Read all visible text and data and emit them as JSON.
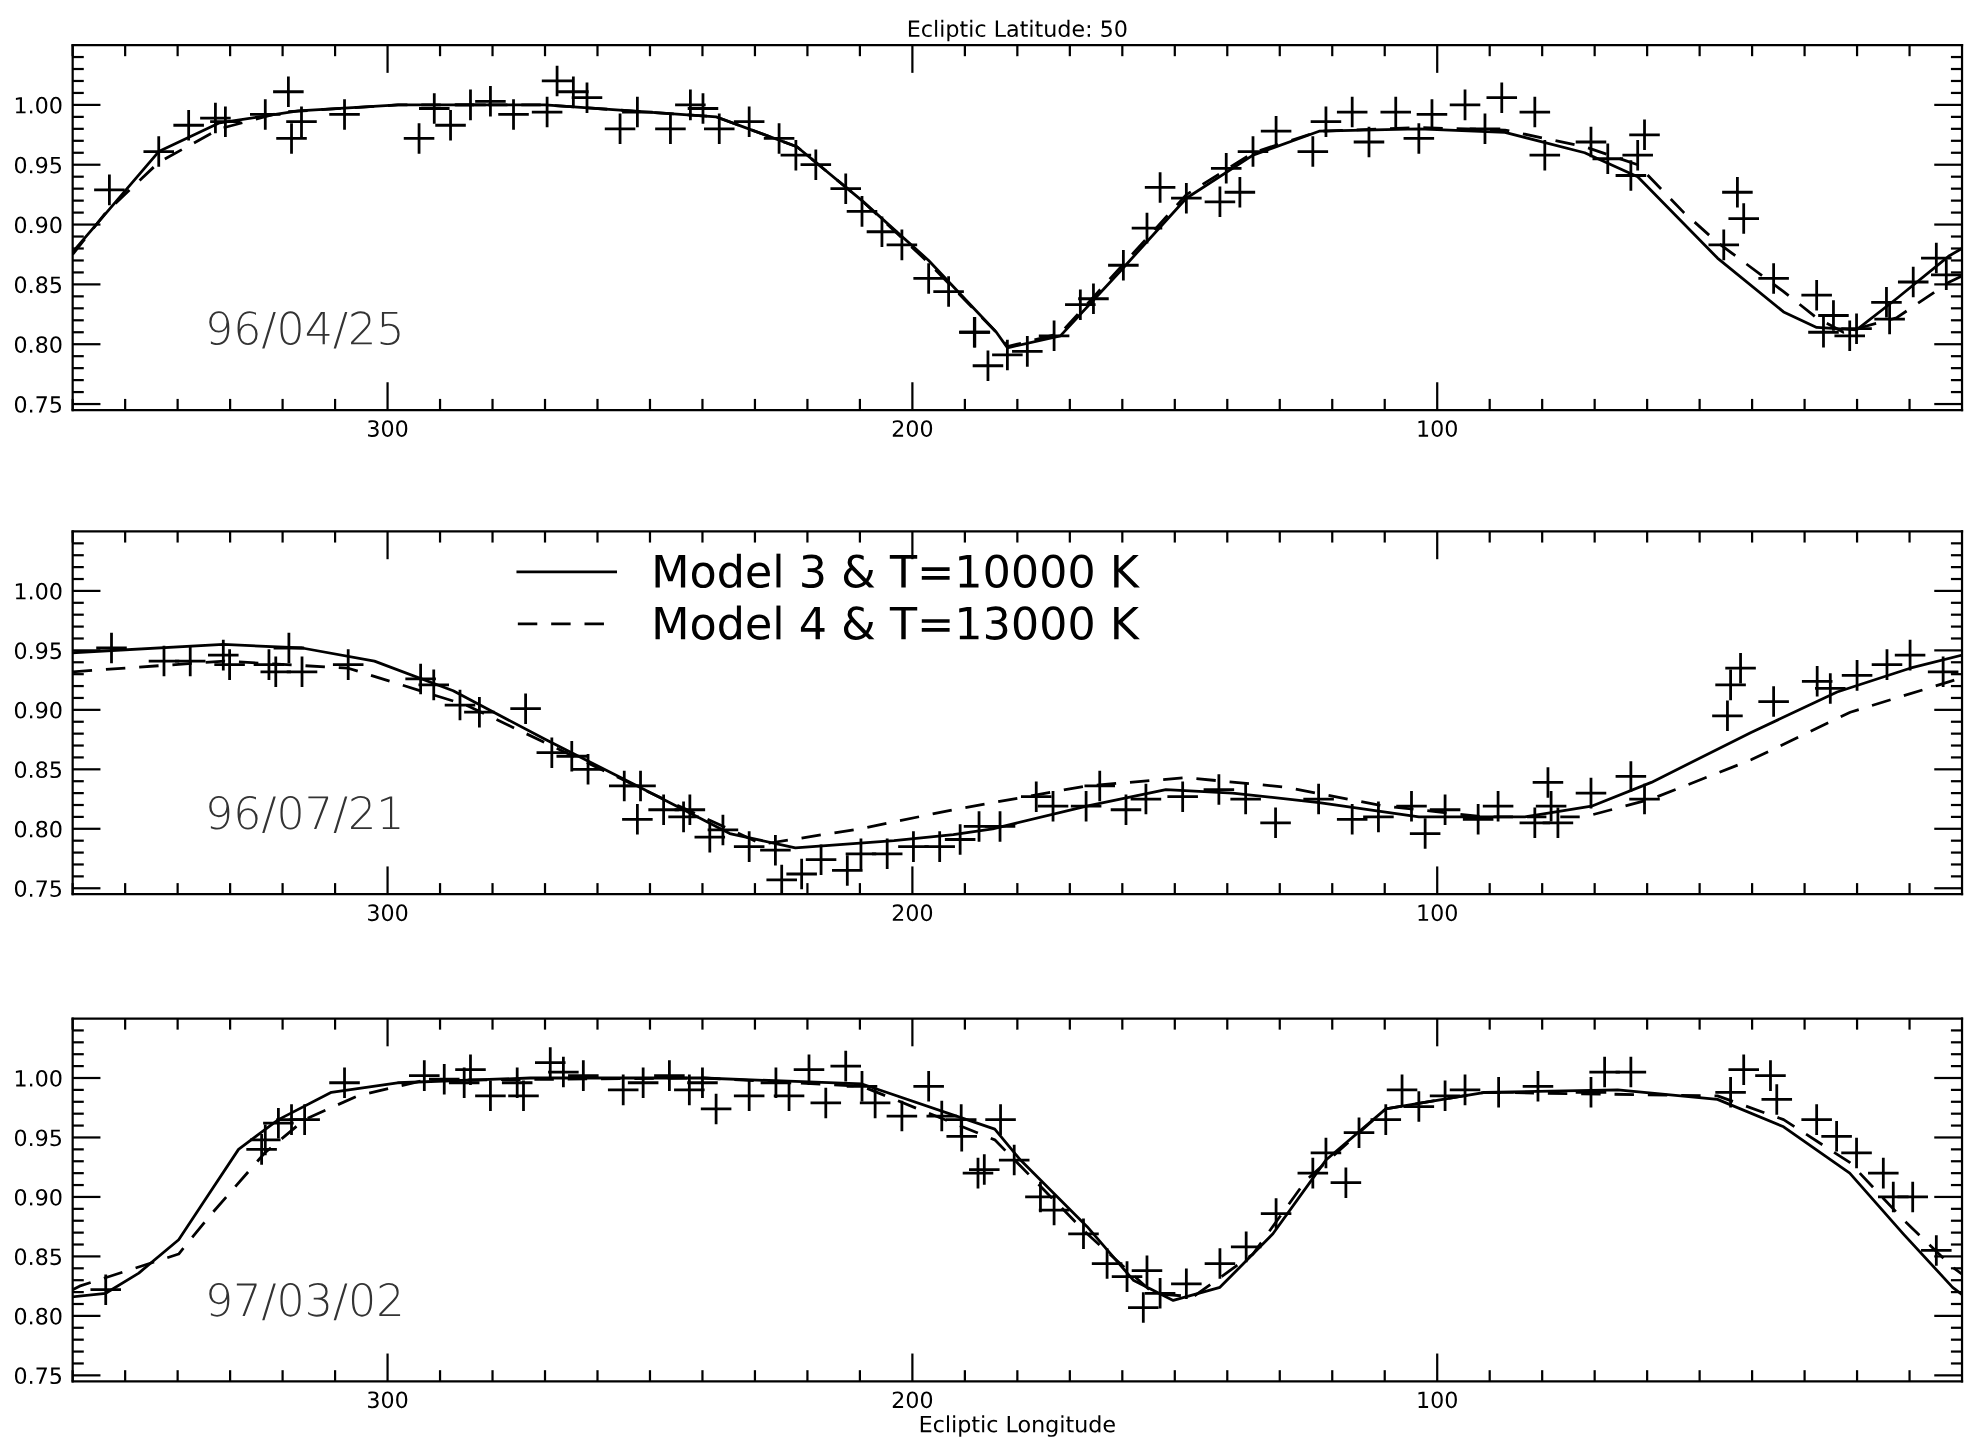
{
  "chart_data": [
    {
      "type": "line",
      "title": "Ecliptic Latitude: 50",
      "annotations": [
        "96/04/25"
      ],
      "xlim": [
        360,
        0
      ],
      "ylim": [
        0.745,
        1.05
      ],
      "xticks": [
        {
          "value": 360,
          "label": null
        },
        {
          "value": 350,
          "label": null
        },
        {
          "value": 340,
          "label": null
        },
        {
          "value": 330,
          "label": null
        },
        {
          "value": 320,
          "label": null
        },
        {
          "value": 310,
          "label": null
        },
        {
          "value": 300,
          "label": "300"
        },
        {
          "value": 290,
          "label": null
        },
        {
          "value": 280,
          "label": null
        },
        {
          "value": 270,
          "label": null
        },
        {
          "value": 260,
          "label": null
        },
        {
          "value": 250,
          "label": null
        },
        {
          "value": 240,
          "label": null
        },
        {
          "value": 230,
          "label": null
        },
        {
          "value": 220,
          "label": null
        },
        {
          "value": 210,
          "label": null
        },
        {
          "value": 200,
          "label": "200"
        },
        {
          "value": 190,
          "label": null
        },
        {
          "value": 180,
          "label": null
        },
        {
          "value": 170,
          "label": null
        },
        {
          "value": 160,
          "label": null
        },
        {
          "value": 150,
          "label": null
        },
        {
          "value": 140,
          "label": null
        },
        {
          "value": 130,
          "label": null
        },
        {
          "value": 120,
          "label": null
        },
        {
          "value": 110,
          "label": null
        },
        {
          "value": 100,
          "label": "100"
        },
        {
          "value": 90,
          "label": null
        },
        {
          "value": 80,
          "label": null
        },
        {
          "value": 70,
          "label": null
        },
        {
          "value": 60,
          "label": null
        },
        {
          "value": 50,
          "label": null
        },
        {
          "value": 40,
          "label": null
        },
        {
          "value": 30,
          "label": null
        },
        {
          "value": 20,
          "label": null
        },
        {
          "value": 10,
          "label": null
        }
      ],
      "yticks": [
        {
          "value": 0.75,
          "label": "0.75"
        },
        {
          "value": 0.76,
          "label": null
        },
        {
          "value": 0.77,
          "label": null
        },
        {
          "value": 0.78,
          "label": null
        },
        {
          "value": 0.79,
          "label": null
        },
        {
          "value": 0.8,
          "label": "0.80"
        },
        {
          "value": 0.81,
          "label": null
        },
        {
          "value": 0.82,
          "label": null
        },
        {
          "value": 0.83,
          "label": null
        },
        {
          "value": 0.84,
          "label": null
        },
        {
          "value": 0.85,
          "label": "0.85"
        },
        {
          "value": 0.86,
          "label": null
        },
        {
          "value": 0.87,
          "label": null
        },
        {
          "value": 0.88,
          "label": null
        },
        {
          "value": 0.89,
          "label": null
        },
        {
          "value": 0.9,
          "label": "0.90"
        },
        {
          "value": 0.91,
          "label": null
        },
        {
          "value": 0.92,
          "label": null
        },
        {
          "value": 0.93,
          "label": null
        },
        {
          "value": 0.94,
          "label": null
        },
        {
          "value": 0.95,
          "label": "0.95"
        },
        {
          "value": 0.96,
          "label": null
        },
        {
          "value": 0.97,
          "label": null
        },
        {
          "value": 0.98,
          "label": null
        },
        {
          "value": 0.99,
          "label": null
        },
        {
          "value": 1.0,
          "label": "1.00"
        },
        {
          "value": 1.01,
          "label": null
        },
        {
          "value": 1.02,
          "label": null
        },
        {
          "value": 1.03,
          "label": null
        },
        {
          "value": 1.04,
          "label": null
        }
      ],
      "series": [
        {
          "type": "line",
          "line_style": "solid",
          "color": "#000000",
          "x": [
            360,
            343.6,
            332,
            317,
            298,
            270,
            237.4,
            222,
            209.6,
            196.9,
            184,
            181.9,
            171.8,
            160.4,
            147.8,
            135.1,
            122.5,
            103.5,
            87.1,
            71.9,
            61.8,
            46.6,
            34,
            27.7,
            20.1,
            12.5,
            2.4,
            0
          ],
          "values": [
            0.877,
            0.961,
            0.985,
            0.995,
            1.0,
            1.0,
            0.99,
            0.965,
            0.92,
            0.87,
            0.81,
            0.797,
            0.807,
            0.861,
            0.922,
            0.958,
            0.978,
            0.98,
            0.977,
            0.96,
            0.94,
            0.872,
            0.827,
            0.814,
            0.812,
            0.838,
            0.874,
            0.88
          ]
        },
        {
          "type": "line",
          "line_style": "dashed",
          "color": "#000000",
          "x": [
            360,
            353.7,
            343.6,
            332,
            320,
            298,
            270,
            237.4,
            222,
            209.6,
            196.9,
            184,
            181.9,
            171.8,
            160.4,
            147.8,
            135.1,
            122.5,
            103.5,
            87.1,
            71.9,
            61.8,
            53,
            46.6,
            34,
            27.7,
            22.6,
            12.5,
            2.4,
            0
          ],
          "values": [
            0.875,
            0.91,
            0.952,
            0.98,
            0.994,
            1.0,
            1.0,
            0.99,
            0.965,
            0.92,
            0.868,
            0.81,
            0.798,
            0.809,
            0.864,
            0.925,
            0.96,
            0.978,
            0.981,
            0.979,
            0.965,
            0.95,
            0.91,
            0.885,
            0.844,
            0.822,
            0.81,
            0.822,
            0.852,
            0.857
          ]
        },
        {
          "type": "scatter",
          "marker": "cross",
          "color": "#000000",
          "x": [
            353.0,
            343.6,
            337.9,
            332.8,
            330.9,
            323.3,
            318.9,
            318.3,
            316.4,
            308.2,
            294.0,
            291.1,
            288.0,
            284.2,
            280.4,
            276.0,
            269.6,
            267.7,
            264.6,
            262.0,
            255.7,
            252.4,
            246.1,
            242.3,
            239.9,
            236.8,
            231.1,
            225.4,
            222.2,
            218.4,
            212.7,
            209.6,
            205.8,
            202.0,
            196.9,
            193.1,
            188.1,
            185.6,
            188.2,
            181.9,
            178.1,
            173.0,
            168.0,
            165.5,
            159.8,
            155.3,
            152.8,
            147.8,
            141.4,
            137.6,
            140.2,
            135.1,
            130.7,
            123.7,
            121.2,
            116.2,
            113.0,
            107.9,
            103.5,
            101.0,
            94.7,
            90.9,
            87.7,
            81.4,
            79.5,
            70.7,
            67.5,
            63.1,
            61.8,
            60.5,
            45.4,
            42.8,
            41.6,
            35.9,
            27.7,
            24.5,
            26.4,
            21.4,
            20.1,
            14.4,
            13.8,
            9.3,
            4.9,
            3.0
          ],
          "values": [
            0.929,
            0.961,
            0.983,
            0.989,
            0.986,
            0.992,
            1.011,
            0.972,
            0.986,
            0.992,
            0.972,
            0.997,
            0.983,
            1.0,
            1.003,
            0.992,
            0.994,
            1.02,
            1.011,
            1.006,
            0.98,
            0.994,
            0.98,
            1.0,
            0.997,
            0.98,
            0.986,
            0.972,
            0.958,
            0.95,
            0.93,
            0.911,
            0.894,
            0.883,
            0.855,
            0.844,
            0.81,
            0.782,
            0.81,
            0.791,
            0.794,
            0.807,
            0.833,
            0.838,
            0.866,
            0.897,
            0.931,
            0.922,
            0.919,
            0.927,
            0.947,
            0.961,
            0.978,
            0.961,
            0.986,
            0.994,
            0.969,
            0.994,
            0.972,
            0.992,
            1.0,
            0.98,
            1.006,
            0.994,
            0.958,
            0.969,
            0.955,
            0.941,
            0.958,
            0.975,
            0.883,
            0.927,
            0.905,
            0.855,
            0.841,
            0.824,
            0.81,
            0.807,
            0.813,
            0.835,
            0.821,
            0.852,
            0.872,
            0.858
          ]
        }
      ]
    },
    {
      "type": "line",
      "annotations": [
        "96/07/21"
      ],
      "legend": "top",
      "xlim": [
        360,
        0
      ],
      "ylim": [
        0.745,
        1.05
      ],
      "xticks": [
        {
          "value": 360,
          "label": null
        },
        {
          "value": 350,
          "label": null
        },
        {
          "value": 340,
          "label": null
        },
        {
          "value": 330,
          "label": null
        },
        {
          "value": 320,
          "label": null
        },
        {
          "value": 310,
          "label": null
        },
        {
          "value": 300,
          "label": "300"
        },
        {
          "value": 290,
          "label": null
        },
        {
          "value": 280,
          "label": null
        },
        {
          "value": 270,
          "label": null
        },
        {
          "value": 260,
          "label": null
        },
        {
          "value": 250,
          "label": null
        },
        {
          "value": 240,
          "label": null
        },
        {
          "value": 230,
          "label": null
        },
        {
          "value": 220,
          "label": null
        },
        {
          "value": 210,
          "label": null
        },
        {
          "value": 200,
          "label": "200"
        },
        {
          "value": 190,
          "label": null
        },
        {
          "value": 180,
          "label": null
        },
        {
          "value": 170,
          "label": null
        },
        {
          "value": 160,
          "label": null
        },
        {
          "value": 150,
          "label": null
        },
        {
          "value": 140,
          "label": null
        },
        {
          "value": 130,
          "label": null
        },
        {
          "value": 120,
          "label": null
        },
        {
          "value": 110,
          "label": null
        },
        {
          "value": 100,
          "label": "100"
        },
        {
          "value": 90,
          "label": null
        },
        {
          "value": 80,
          "label": null
        },
        {
          "value": 70,
          "label": null
        },
        {
          "value": 60,
          "label": null
        },
        {
          "value": 50,
          "label": null
        },
        {
          "value": 40,
          "label": null
        },
        {
          "value": 30,
          "label": null
        },
        {
          "value": 20,
          "label": null
        },
        {
          "value": 10,
          "label": null
        }
      ],
      "yticks": [
        {
          "value": 0.75,
          "label": "0.75"
        },
        {
          "value": 0.76,
          "label": null
        },
        {
          "value": 0.77,
          "label": null
        },
        {
          "value": 0.78,
          "label": null
        },
        {
          "value": 0.79,
          "label": null
        },
        {
          "value": 0.8,
          "label": "0.80"
        },
        {
          "value": 0.81,
          "label": null
        },
        {
          "value": 0.82,
          "label": null
        },
        {
          "value": 0.83,
          "label": null
        },
        {
          "value": 0.84,
          "label": null
        },
        {
          "value": 0.85,
          "label": "0.85"
        },
        {
          "value": 0.86,
          "label": null
        },
        {
          "value": 0.87,
          "label": null
        },
        {
          "value": 0.88,
          "label": null
        },
        {
          "value": 0.89,
          "label": null
        },
        {
          "value": 0.9,
          "label": "0.90"
        },
        {
          "value": 0.91,
          "label": null
        },
        {
          "value": 0.92,
          "label": null
        },
        {
          "value": 0.93,
          "label": null
        },
        {
          "value": 0.94,
          "label": null
        },
        {
          "value": 0.95,
          "label": "0.95"
        },
        {
          "value": 0.96,
          "label": null
        },
        {
          "value": 0.97,
          "label": null
        },
        {
          "value": 0.98,
          "label": null
        },
        {
          "value": 0.99,
          "label": null
        },
        {
          "value": 1.0,
          "label": "1.00"
        },
        {
          "value": 1.01,
          "label": null
        },
        {
          "value": 1.02,
          "label": null
        },
        {
          "value": 1.03,
          "label": null
        },
        {
          "value": 1.04,
          "label": null
        }
      ],
      "series": [
        {
          "type": "line",
          "name": "Model 3 & T=10000 K",
          "line_style": "solid",
          "color": "#000000",
          "x": [
            360,
            331.3,
            316.3,
            302.5,
            287.5,
            269.9,
            252.4,
            234.8,
            222.3,
            203.5,
            192.2,
            184.7,
            166.8,
            151.7,
            139,
            122.5,
            103.5,
            83.3,
            70.6,
            59.2,
            40.2,
            23.8,
            9.9,
            0
          ],
          "values": [
            0.948,
            0.955,
            0.952,
            0.941,
            0.916,
            0.875,
            0.836,
            0.796,
            0.784,
            0.79,
            0.795,
            0.8,
            0.819,
            0.833,
            0.83,
            0.822,
            0.81,
            0.81,
            0.819,
            0.839,
            0.881,
            0.915,
            0.935,
            0.946
          ]
        },
        {
          "type": "line",
          "name": "Model 4 & T=13000 K",
          "line_style": "dashed",
          "color": "#000000",
          "x": [
            360,
            331,
            307.5,
            285,
            266,
            247.4,
            228.6,
            210,
            192.2,
            166.9,
            147.9,
            128.9,
            109.9,
            91,
            72,
            59.2,
            40.2,
            21.3,
            0
          ],
          "values": [
            0.932,
            0.941,
            0.935,
            0.904,
            0.864,
            0.825,
            0.787,
            0.8,
            0.816,
            0.836,
            0.843,
            0.835,
            0.819,
            0.81,
            0.81,
            0.825,
            0.858,
            0.898,
            0.927
          ]
        },
        {
          "type": "scatter",
          "marker": "cross",
          "color": "#000000",
          "x": [
            352.6,
            342.6,
            337.6,
            331.3,
            330.1,
            322.6,
            321.3,
            318.8,
            316.3,
            307.5,
            293.7,
            291.2,
            286.2,
            282.5,
            273.7,
            268.7,
            264.9,
            261.8,
            254.9,
            251.8,
            252.4,
            247.4,
            243.6,
            242.4,
            238.6,
            236.1,
            231.1,
            226.1,
            224.9,
            221.1,
            217.4,
            212.4,
            209.8,
            204.8,
            199.8,
            194.8,
            187.3,
            190.9,
            183.3,
            176.4,
            173.2,
            166.9,
            164.3,
            159.3,
            155.5,
            148.5,
            141.6,
            136.5,
            130.8,
            122.6,
            116.2,
            111.2,
            104.9,
            102.3,
            98.5,
            92.2,
            88.4,
            81.4,
            78.9,
            78.3,
            77.0,
            70.7,
            63.1,
            60.5,
            44.7,
            44.1,
            42.2,
            35.9,
            27.6,
            25.1,
            20.0,
            14.3,
            9.9,
            3.6
          ],
          "values": [
            0.952,
            0.941,
            0.941,
            0.946,
            0.938,
            0.938,
            0.932,
            0.952,
            0.932,
            0.938,
            0.926,
            0.921,
            0.904,
            0.898,
            0.901,
            0.864,
            0.861,
            0.85,
            0.836,
            0.836,
            0.808,
            0.816,
            0.81,
            0.816,
            0.793,
            0.799,
            0.785,
            0.782,
            0.757,
            0.762,
            0.774,
            0.765,
            0.779,
            0.779,
            0.785,
            0.785,
            0.802,
            0.791,
            0.802,
            0.827,
            0.819,
            0.819,
            0.836,
            0.816,
            0.825,
            0.827,
            0.833,
            0.825,
            0.805,
            0.825,
            0.808,
            0.81,
            0.819,
            0.796,
            0.816,
            0.808,
            0.819,
            0.805,
            0.839,
            0.819,
            0.805,
            0.83,
            0.844,
            0.825,
            0.895,
            0.921,
            0.935,
            0.907,
            0.924,
            0.918,
            0.929,
            0.938,
            0.946,
            0.932
          ]
        }
      ]
    },
    {
      "type": "line",
      "xlabel": "Ecliptic Longitude",
      "annotations": [
        "97/03/02"
      ],
      "xlim": [
        360,
        0
      ],
      "ylim": [
        0.745,
        1.05
      ],
      "xticks": [
        {
          "value": 360,
          "label": null
        },
        {
          "value": 350,
          "label": null
        },
        {
          "value": 340,
          "label": null
        },
        {
          "value": 330,
          "label": null
        },
        {
          "value": 320,
          "label": null
        },
        {
          "value": 310,
          "label": null
        },
        {
          "value": 300,
          "label": "300"
        },
        {
          "value": 290,
          "label": null
        },
        {
          "value": 280,
          "label": null
        },
        {
          "value": 270,
          "label": null
        },
        {
          "value": 260,
          "label": null
        },
        {
          "value": 250,
          "label": null
        },
        {
          "value": 240,
          "label": null
        },
        {
          "value": 230,
          "label": null
        },
        {
          "value": 220,
          "label": null
        },
        {
          "value": 210,
          "label": null
        },
        {
          "value": 200,
          "label": "200"
        },
        {
          "value": 190,
          "label": null
        },
        {
          "value": 180,
          "label": null
        },
        {
          "value": 170,
          "label": null
        },
        {
          "value": 160,
          "label": null
        },
        {
          "value": 150,
          "label": null
        },
        {
          "value": 140,
          "label": null
        },
        {
          "value": 130,
          "label": null
        },
        {
          "value": 120,
          "label": null
        },
        {
          "value": 110,
          "label": null
        },
        {
          "value": 100,
          "label": "100"
        },
        {
          "value": 90,
          "label": null
        },
        {
          "value": 80,
          "label": null
        },
        {
          "value": 70,
          "label": null
        },
        {
          "value": 60,
          "label": null
        },
        {
          "value": 50,
          "label": null
        },
        {
          "value": 40,
          "label": null
        },
        {
          "value": 30,
          "label": null
        },
        {
          "value": 20,
          "label": null
        },
        {
          "value": 10,
          "label": null
        }
      ],
      "yticks": [
        {
          "value": 0.75,
          "label": "0.75"
        },
        {
          "value": 0.76,
          "label": null
        },
        {
          "value": 0.77,
          "label": null
        },
        {
          "value": 0.78,
          "label": null
        },
        {
          "value": 0.79,
          "label": null
        },
        {
          "value": 0.8,
          "label": "0.80"
        },
        {
          "value": 0.81,
          "label": null
        },
        {
          "value": 0.82,
          "label": null
        },
        {
          "value": 0.83,
          "label": null
        },
        {
          "value": 0.84,
          "label": null
        },
        {
          "value": 0.85,
          "label": "0.85"
        },
        {
          "value": 0.86,
          "label": null
        },
        {
          "value": 0.87,
          "label": null
        },
        {
          "value": 0.88,
          "label": null
        },
        {
          "value": 0.89,
          "label": null
        },
        {
          "value": 0.9,
          "label": "0.90"
        },
        {
          "value": 0.91,
          "label": null
        },
        {
          "value": 0.92,
          "label": null
        },
        {
          "value": 0.93,
          "label": null
        },
        {
          "value": 0.94,
          "label": null
        },
        {
          "value": 0.95,
          "label": "0.95"
        },
        {
          "value": 0.96,
          "label": null
        },
        {
          "value": 0.97,
          "label": null
        },
        {
          "value": 0.98,
          "label": null
        },
        {
          "value": 0.99,
          "label": null
        },
        {
          "value": 1.0,
          "label": "1.00"
        },
        {
          "value": 1.01,
          "label": null
        },
        {
          "value": 1.02,
          "label": null
        },
        {
          "value": 1.03,
          "label": null
        },
        {
          "value": 1.04,
          "label": null
        }
      ],
      "series": [
        {
          "type": "line",
          "line_style": "solid",
          "color": "#000000",
          "x": [
            360,
            353.7,
            347.4,
            339.8,
            334.7,
            328.4,
            320.8,
            310.7,
            298.1,
            272.8,
            240,
            209.6,
            184.3,
            179.4,
            166.7,
            157.9,
            150.3,
            141.4,
            131.3,
            121.2,
            109.8,
            90.9,
            65.6,
            46.6,
            34,
            21.4,
            11.2,
            1.8,
            0
          ],
          "values": [
            0.816,
            0.819,
            0.836,
            0.864,
            0.898,
            0.94,
            0.965,
            0.988,
            0.996,
            1.0,
            1.0,
            0.995,
            0.957,
            0.931,
            0.875,
            0.83,
            0.813,
            0.824,
            0.869,
            0.931,
            0.974,
            0.988,
            0.99,
            0.982,
            0.959,
            0.92,
            0.869,
            0.824,
            0.818
          ]
        },
        {
          "type": "line",
          "line_style": "dashed",
          "color": "#000000",
          "x": [
            360,
            358.7,
            339.8,
            333.5,
            323.4,
            315.8,
            305.7,
            293.1,
            240,
            209.6,
            184.3,
            179.4,
            166.7,
            154.1,
            146.5,
            135.1,
            125,
            109.8,
            90.9,
            46.6,
            34,
            21.4,
            11.2,
            1.8,
            0
          ],
          "values": [
            0.822,
            0.825,
            0.852,
            0.886,
            0.937,
            0.965,
            0.985,
            0.998,
            1.0,
            0.993,
            0.948,
            0.926,
            0.869,
            0.819,
            0.816,
            0.852,
            0.914,
            0.974,
            0.988,
            0.985,
            0.965,
            0.929,
            0.881,
            0.841,
            0.835
          ]
        },
        {
          "type": "scatter",
          "marker": "cross",
          "color": "#000000",
          "x": [
            353.7,
            324.0,
            323.3,
            320.8,
            318.3,
            315.8,
            308.2,
            293.0,
            289.2,
            285.4,
            284.2,
            280.4,
            275.3,
            274.1,
            269.0,
            266.5,
            262.7,
            255.1,
            251.3,
            246.3,
            242.5,
            240.0,
            237.4,
            231.1,
            226.0,
            223.5,
            219.7,
            216.5,
            212.7,
            209.6,
            207.1,
            202.0,
            196.9,
            194.4,
            190.6,
            187.5,
            190.7,
            186.3,
            183.2,
            180.6,
            175.6,
            173.0,
            167.4,
            162.9,
            159.1,
            155.3,
            156.0,
            152.8,
            147.8,
            141.4,
            136.4,
            130.7,
            123.7,
            121.2,
            117.4,
            114.9,
            109.8,
            106.7,
            103.5,
            98.5,
            94.7,
            88.3,
            80.8,
            70.7,
            68.1,
            63.1,
            44.1,
            41.6,
            36.5,
            35.3,
            27.7,
            23.9,
            20.1,
            15.0,
            13.1,
            9.4,
            4.9
          ],
          "values": [
            0.822,
            0.94,
            0.948,
            0.962,
            0.965,
            0.965,
            0.996,
            1.002,
            0.999,
            0.996,
            1.007,
            0.985,
            0.996,
            0.985,
            1.013,
            1.005,
            1.002,
            0.99,
            0.996,
            1.002,
            0.99,
            0.996,
            0.974,
            0.985,
            0.996,
            0.985,
            1.007,
            0.979,
            1.01,
            0.993,
            0.979,
            0.968,
            0.993,
            0.968,
            0.951,
            0.92,
            0.965,
            0.923,
            0.965,
            0.931,
            0.9,
            0.889,
            0.869,
            0.844,
            0.833,
            0.838,
            0.807,
            0.819,
            0.827,
            0.844,
            0.858,
            0.886,
            0.92,
            0.937,
            0.912,
            0.954,
            0.965,
            0.99,
            0.976,
            0.985,
            0.99,
            0.988,
            0.993,
            0.988,
            1.005,
            1.005,
            0.988,
            1.007,
            1.002,
            0.982,
            0.965,
            0.951,
            0.937,
            0.92,
            0.9,
            0.9,
            0.855
          ]
        }
      ]
    }
  ]
}
